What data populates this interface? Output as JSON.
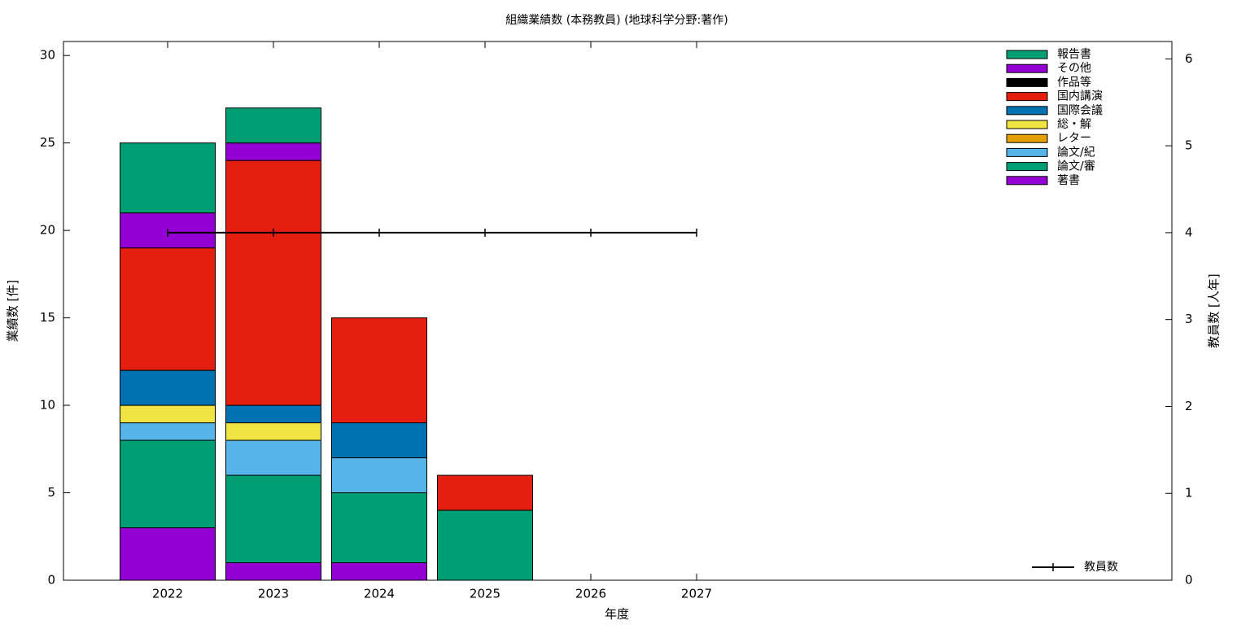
{
  "chart_data": {
    "type": "bar",
    "stacked": true,
    "title": "組織業績数 (本務教員) (地球科学分野:著作)",
    "xlabel": "年度",
    "ylabel": "業績数 [件]",
    "y2label": "教員数 [人年]",
    "categories": [
      "2022",
      "2023",
      "2024",
      "2025",
      "2026",
      "2027"
    ],
    "series": [
      {
        "name": "報告書",
        "color": "#009e73",
        "values": [
          4,
          2,
          0,
          0,
          0,
          0
        ]
      },
      {
        "name": "その他",
        "color": "#9400d3",
        "values": [
          2,
          1,
          0,
          0,
          0,
          0
        ]
      },
      {
        "name": "作品等",
        "color": "#000000",
        "values": [
          0,
          0,
          0,
          0,
          0,
          0
        ]
      },
      {
        "name": "国内講演",
        "color": "#e51e10",
        "values": [
          7,
          14,
          6,
          2,
          0,
          0
        ]
      },
      {
        "name": "国際会議",
        "color": "#0072b2",
        "values": [
          2,
          1,
          2,
          0,
          0,
          0
        ]
      },
      {
        "name": "総・解",
        "color": "#f0e442",
        "values": [
          1,
          1,
          0,
          0,
          0,
          0
        ]
      },
      {
        "name": "レター",
        "color": "#e69f00",
        "values": [
          0,
          0,
          0,
          0,
          0,
          0
        ]
      },
      {
        "name": "論文/紀",
        "color": "#56b4e9",
        "values": [
          1,
          2,
          2,
          0,
          0,
          0
        ]
      },
      {
        "name": "論文/審",
        "color": "#009e73",
        "values": [
          5,
          5,
          4,
          4,
          0,
          0
        ]
      },
      {
        "name": "著書",
        "color": "#9400d3",
        "values": [
          3,
          1,
          1,
          0,
          0,
          0
        ]
      }
    ],
    "line_series": [
      {
        "name": "教員数",
        "color": "#000000",
        "axis": "y2",
        "values": [
          4,
          4,
          4,
          4,
          4,
          4
        ]
      }
    ],
    "ylim": [
      0,
      30.8
    ],
    "yticks": [
      0,
      5,
      10,
      15,
      20,
      25,
      30
    ],
    "y2lim": [
      0,
      6.2
    ],
    "y2ticks": [
      0,
      1,
      2,
      3,
      4,
      5,
      6
    ],
    "legend": "top-right",
    "line_legend": "bottom-right"
  }
}
